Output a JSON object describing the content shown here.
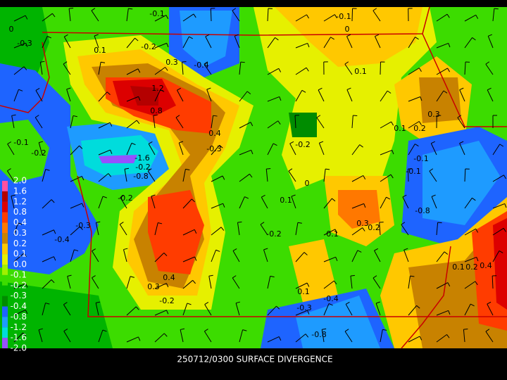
{
  "title": "250712/0300 SURFACE DIVERGENCE",
  "legend": {
    "labels": [
      "2.0",
      "1.6",
      "1.2",
      "0.8",
      "0.4",
      "0.3",
      "0.2",
      "0.1",
      "0.0",
      "-0.1",
      "-0.2",
      "-0.3",
      "-0.4",
      "-0.8",
      "-1.2",
      "-1.6",
      "-2.0"
    ],
    "colors": [
      "#ff50a0",
      "#b40000",
      "#dc0000",
      "#ff3c00",
      "#ff7800",
      "#c88200",
      "#ffc800",
      "#e6f000",
      "#a0f000",
      "#3cdc00",
      "#00b400",
      "#008c00",
      "#1e64ff",
      "#1e9bff",
      "#00dcdc",
      "#9650ff"
    ]
  },
  "contour_labels": [
    "-0.1",
    "-0.1",
    "0",
    "0",
    "-0.3",
    "0.1",
    "-0.2",
    "0.3",
    "-0.4",
    "0.1",
    "1.2",
    "0.8",
    "0.4",
    "-0.3",
    "0.3",
    "0.1",
    "0.2",
    "-0.1",
    "-0.2",
    "-1.6",
    "-0.2",
    "-0.8",
    "-0.2",
    "0",
    "-0.1",
    "-0.1",
    "-0.8",
    "0.1",
    "-0.2",
    "-0.3",
    "-0.4",
    "-0.2",
    "0.1",
    "0.3",
    "0.2",
    "0.4",
    "0.3",
    "-0.2",
    "0.1",
    "-0.4",
    "-0.3",
    "-0.8",
    "0.1",
    "0.4",
    "0.2"
  ]
}
